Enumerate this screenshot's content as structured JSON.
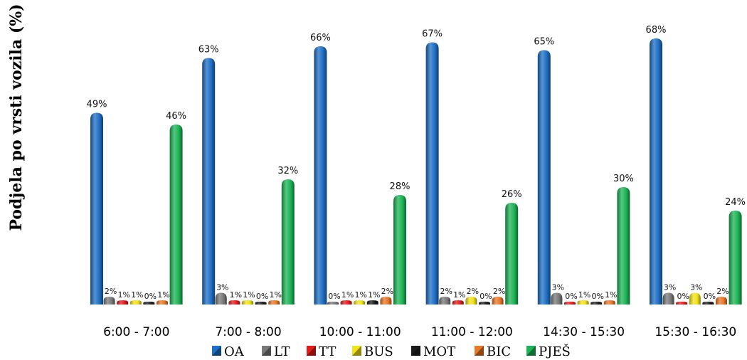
{
  "chart_data": {
    "type": "bar",
    "title": "",
    "xlabel": "",
    "ylabel": "Podjela po vrsti vozila (%)",
    "ylim": [
      0,
      70
    ],
    "grid": false,
    "legend_position": "bottom",
    "categories": [
      "6:00 - 7:00",
      "7:00 - 8:00",
      "10:00 - 11:00",
      "11:00 - 12:00",
      "14:30 - 15:30",
      "15:30 - 16:30"
    ],
    "series": [
      {
        "name": "OA",
        "color": "#1f6fc5",
        "values": [
          49,
          63,
          66,
          67,
          65,
          68
        ],
        "labels": [
          "49%",
          "63%",
          "66%",
          "67%",
          "65%",
          "68%"
        ]
      },
      {
        "name": "LT",
        "color": "#7a7a7a",
        "values": [
          2,
          3,
          0,
          2,
          3,
          3
        ],
        "labels": [
          "2%",
          "3%",
          "0%",
          "2%",
          "3%",
          "3%"
        ]
      },
      {
        "name": "TT",
        "color": "#e31b1b",
        "values": [
          1,
          1,
          1,
          1,
          0,
          0
        ],
        "labels": [
          "1%",
          "1%",
          "1%",
          "1%",
          "0%",
          "0%"
        ]
      },
      {
        "name": "BUS",
        "color": "#f2e21a",
        "values": [
          1,
          1,
          1,
          2,
          1,
          3
        ],
        "labels": [
          "1%",
          "1%",
          "1%",
          "2%",
          "1%",
          "3%"
        ]
      },
      {
        "name": "MOT",
        "color": "#1a1a1a",
        "values": [
          0,
          0,
          1,
          0,
          0,
          0
        ],
        "labels": [
          "0%",
          "0%",
          "1%",
          "0%",
          "0%",
          "0%"
        ]
      },
      {
        "name": "BIC",
        "color": "#e8782a",
        "values": [
          1,
          1,
          2,
          2,
          1,
          2
        ],
        "labels": [
          "1%",
          "1%",
          "2%",
          "2%",
          "1%",
          "2%"
        ]
      },
      {
        "name": "PJEŠ",
        "color": "#1db455",
        "values": [
          46,
          32,
          28,
          26,
          30,
          24
        ],
        "labels": [
          "46%",
          "32%",
          "28%",
          "26%",
          "30%",
          "24%"
        ]
      }
    ]
  }
}
